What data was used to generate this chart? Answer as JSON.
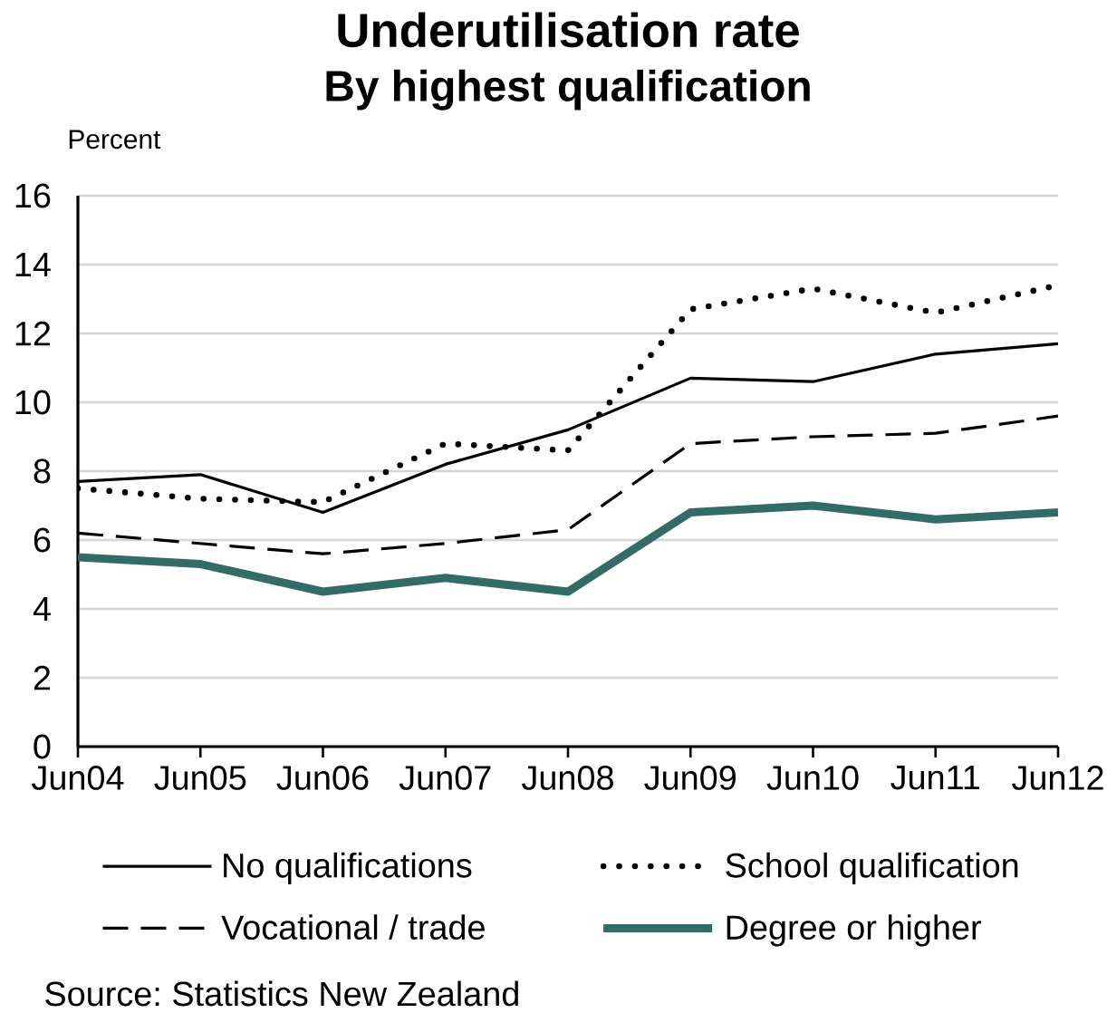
{
  "chart_data": {
    "type": "line",
    "title": "Underutilisation rate",
    "subtitle": "By highest qualification",
    "ylabel": "Percent",
    "categories": [
      "Jun04",
      "Jun05",
      "Jun06",
      "Jun07",
      "Jun08",
      "Jun09",
      "Jun10",
      "Jun11",
      "Jun12"
    ],
    "series": [
      {
        "name": "No qualifications",
        "color": "#000000",
        "line_style": "solid",
        "values": [
          7.7,
          7.9,
          6.8,
          8.2,
          9.2,
          10.7,
          10.6,
          11.4,
          11.7
        ]
      },
      {
        "name": "School qualification",
        "color": "#000000",
        "line_style": "dotted",
        "values": [
          7.5,
          7.2,
          7.1,
          8.8,
          8.6,
          12.7,
          13.3,
          12.6,
          13.4
        ]
      },
      {
        "name": "Vocational / trade",
        "color": "#000000",
        "line_style": "dashed",
        "values": [
          6.2,
          5.9,
          5.6,
          5.9,
          6.3,
          8.8,
          9.0,
          9.1,
          9.6
        ]
      },
      {
        "name": "Degree or higher",
        "color": "#336b67",
        "line_style": "solid",
        "values": [
          5.5,
          5.3,
          4.5,
          4.9,
          4.5,
          6.8,
          7.0,
          6.6,
          6.8
        ]
      }
    ],
    "ylim": [
      0,
      16
    ],
    "yticks": [
      0,
      2,
      4,
      6,
      8,
      10,
      12,
      14,
      16
    ],
    "grid": "y",
    "legend": "bottom",
    "annotations": [
      "Source: Statistics New Zealand"
    ]
  }
}
